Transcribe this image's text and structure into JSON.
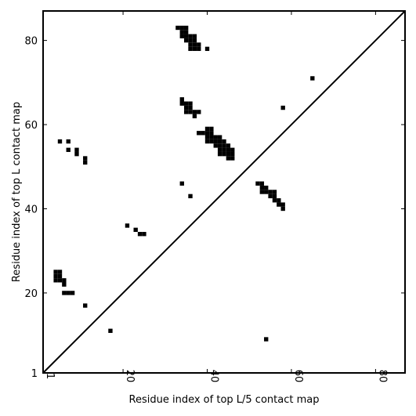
{
  "chart_data": {
    "type": "heatmap",
    "title": "",
    "xlabel": "Residue index of top L/5 contact map",
    "ylabel": "Residue index of top L contact map",
    "xlim": [
      1,
      87
    ],
    "ylim": [
      1,
      87
    ],
    "x_ticks": [
      1,
      20,
      40,
      60,
      80
    ],
    "x_tick_labels": [
      "1",
      "20",
      "40",
      "60",
      "80"
    ],
    "y_ticks": [
      1,
      20,
      40,
      60,
      80
    ],
    "y_tick_labels": [
      "1",
      "20",
      "40",
      "60",
      "80"
    ],
    "diagonal": true,
    "colors": {
      "contact": "#000000",
      "background": "#ffffff",
      "frame": "#000000"
    },
    "upper_contacts": [
      [
        33,
        83
      ],
      [
        34,
        83
      ],
      [
        35,
        83
      ],
      [
        34,
        82
      ],
      [
        35,
        82
      ],
      [
        34,
        81
      ],
      [
        35,
        81
      ],
      [
        36,
        81
      ],
      [
        37,
        81
      ],
      [
        35,
        80
      ],
      [
        36,
        80
      ],
      [
        37,
        80
      ],
      [
        36,
        79
      ],
      [
        37,
        79
      ],
      [
        38,
        79
      ],
      [
        36,
        78
      ],
      [
        37,
        78
      ],
      [
        38,
        78
      ],
      [
        40,
        78
      ],
      [
        65,
        71
      ],
      [
        34,
        66
      ],
      [
        34,
        65
      ],
      [
        35,
        65
      ],
      [
        36,
        65
      ],
      [
        35,
        64
      ],
      [
        36,
        64
      ],
      [
        58,
        64
      ],
      [
        35,
        63
      ],
      [
        36,
        63
      ],
      [
        37,
        63
      ],
      [
        38,
        63
      ],
      [
        37,
        62
      ],
      [
        38,
        58
      ],
      [
        39,
        58
      ],
      [
        40,
        59
      ],
      [
        41,
        59
      ],
      [
        40,
        58
      ],
      [
        41,
        58
      ],
      [
        40,
        57
      ],
      [
        41,
        57
      ],
      [
        42,
        57
      ],
      [
        43,
        57
      ],
      [
        40,
        56
      ],
      [
        41,
        56
      ],
      [
        42,
        56
      ],
      [
        43,
        56
      ],
      [
        44,
        56
      ],
      [
        42,
        55
      ],
      [
        43,
        55
      ],
      [
        44,
        55
      ],
      [
        45,
        55
      ],
      [
        43,
        54
      ],
      [
        44,
        54
      ],
      [
        45,
        54
      ],
      [
        46,
        54
      ],
      [
        43,
        53
      ],
      [
        44,
        53
      ],
      [
        45,
        53
      ],
      [
        46,
        53
      ],
      [
        45,
        52
      ],
      [
        46,
        52
      ],
      [
        34,
        46
      ],
      [
        36,
        43
      ],
      [
        52,
        46
      ],
      [
        53,
        46
      ],
      [
        53,
        45
      ],
      [
        54,
        45
      ],
      [
        53,
        44
      ],
      [
        54,
        44
      ],
      [
        55,
        44
      ],
      [
        56,
        44
      ],
      [
        55,
        43
      ],
      [
        56,
        43
      ],
      [
        56,
        42
      ],
      [
        57,
        42
      ],
      [
        57,
        41
      ],
      [
        58,
        41
      ],
      [
        58,
        40
      ]
    ],
    "lower_contacts": [
      [
        5,
        56
      ],
      [
        7,
        56
      ],
      [
        7,
        54
      ],
      [
        9,
        54
      ],
      [
        9,
        53
      ],
      [
        11,
        52
      ],
      [
        11,
        51
      ],
      [
        4,
        25
      ],
      [
        5,
        25
      ],
      [
        4,
        24
      ],
      [
        5,
        24
      ],
      [
        4,
        23
      ],
      [
        5,
        23
      ],
      [
        6,
        23
      ],
      [
        6,
        22
      ],
      [
        6,
        20
      ],
      [
        7,
        20
      ],
      [
        8,
        20
      ],
      [
        11,
        17
      ],
      [
        17,
        11
      ],
      [
        21,
        36
      ],
      [
        23,
        35
      ],
      [
        24,
        34
      ],
      [
        25,
        34
      ],
      [
        54,
        9
      ]
    ]
  }
}
